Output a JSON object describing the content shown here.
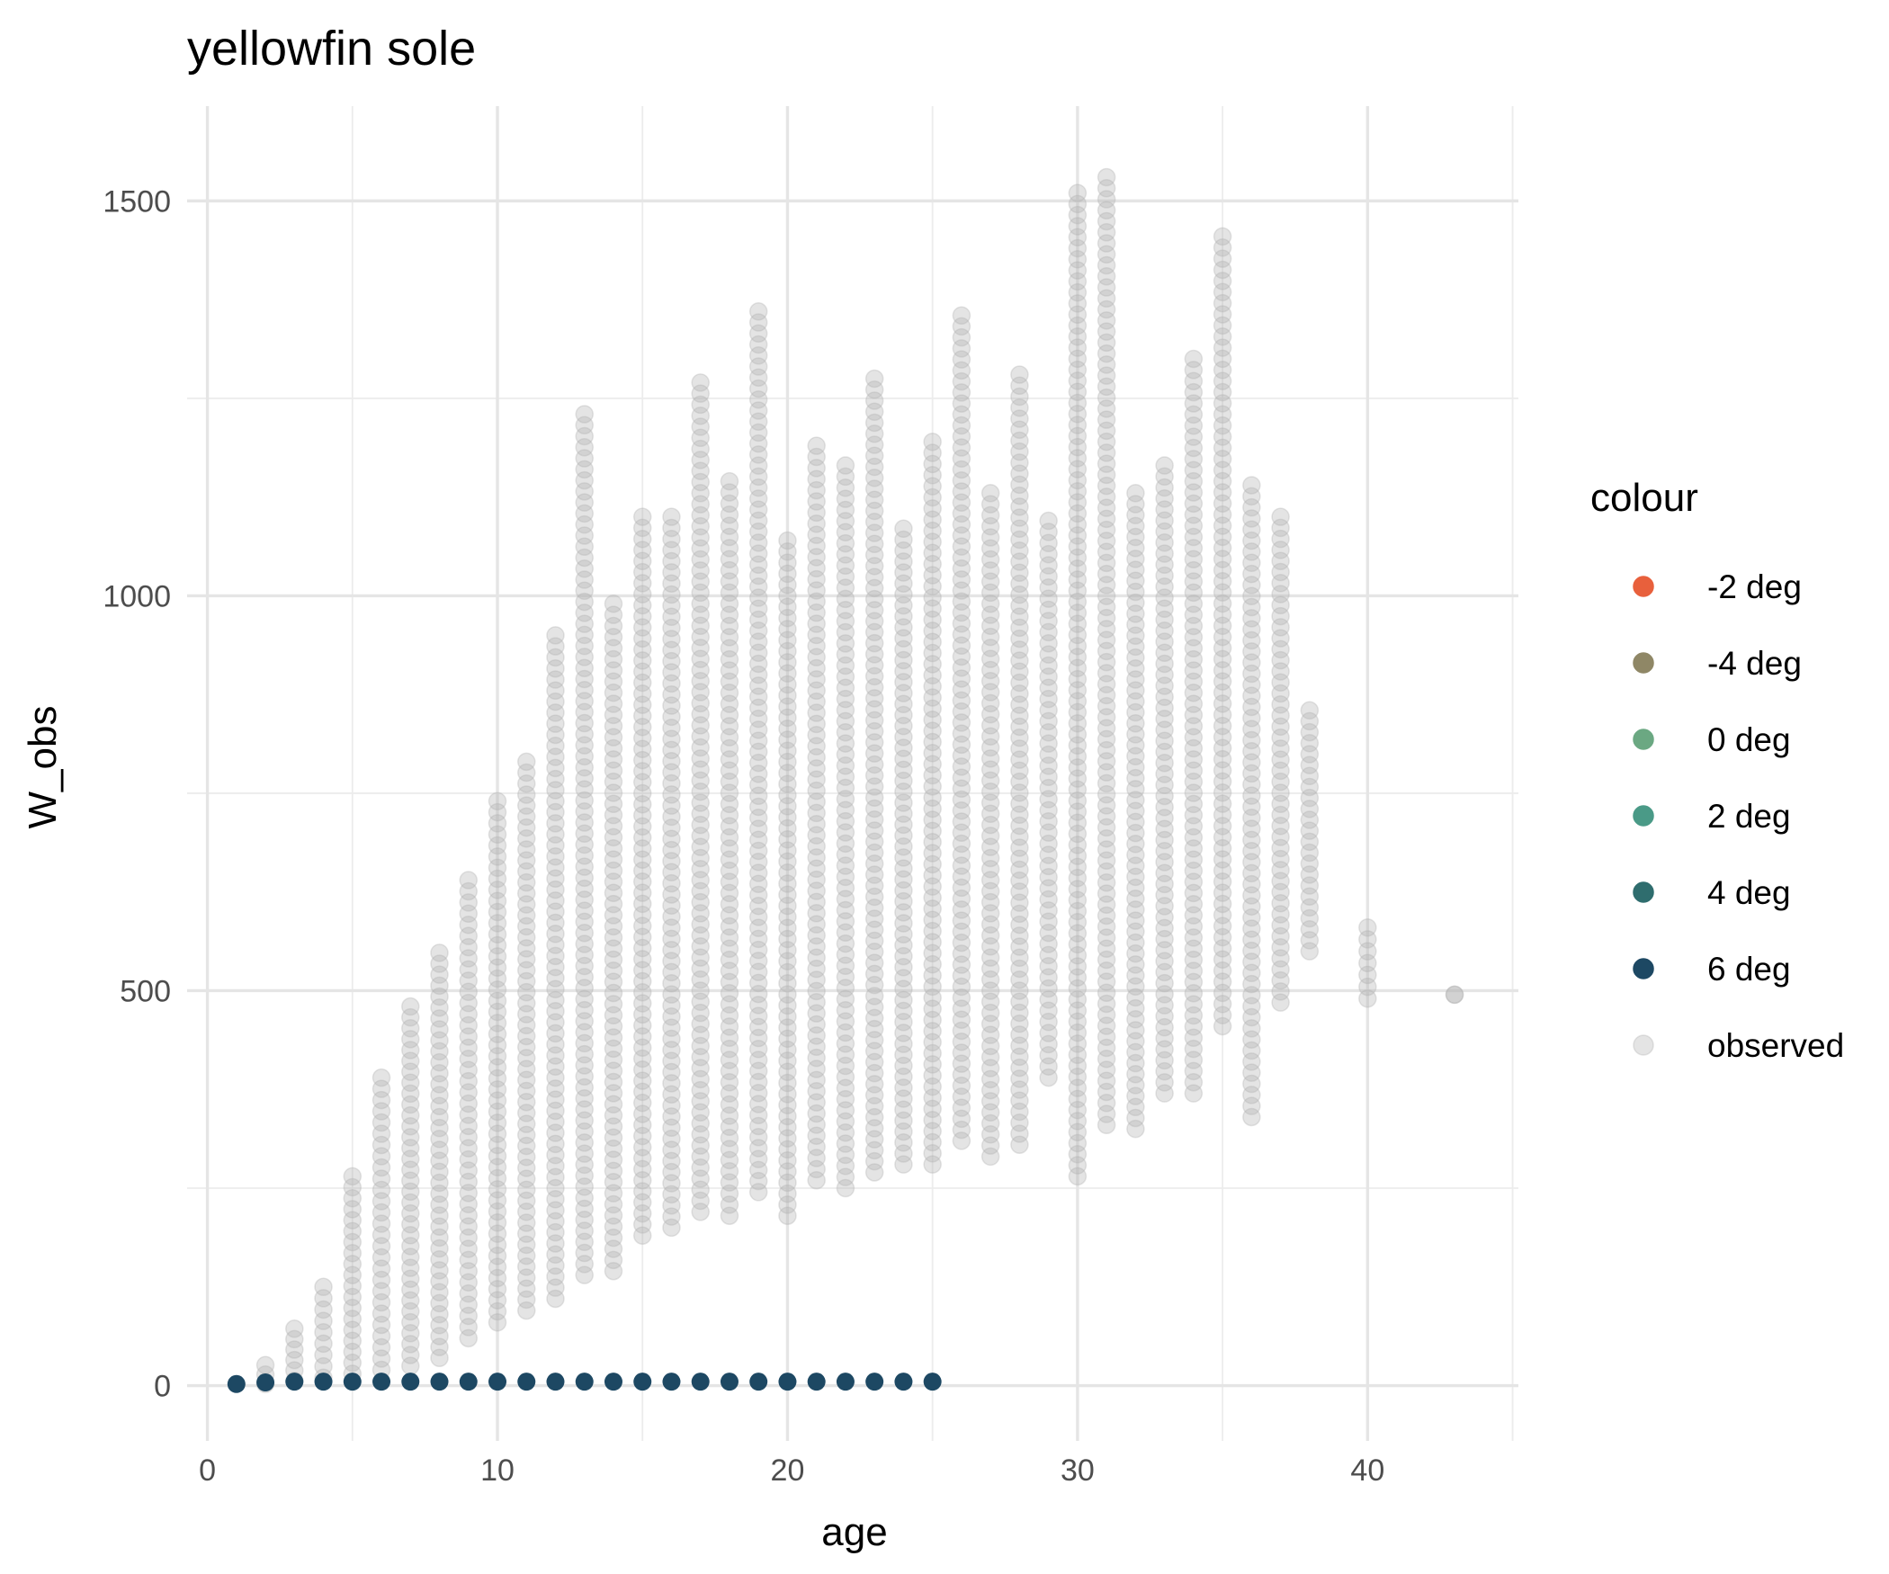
{
  "chart_data": {
    "type": "scatter",
    "title": "yellowfin sole",
    "xlabel": "age",
    "ylabel": "W_obs",
    "xlim": [
      -0.7,
      45.2
    ],
    "ylim": [
      -70,
      1620
    ],
    "x_ticks": [
      0,
      10,
      20,
      30,
      40
    ],
    "y_ticks": [
      0,
      500,
      1000,
      1500
    ],
    "grid": true,
    "legend": {
      "title": "colour",
      "position": "right",
      "entries": [
        {
          "label": "-2  deg",
          "color": "#E8603C"
        },
        {
          "label": "-4  deg",
          "color": "#8F8766"
        },
        {
          "label": "0  deg",
          "color": "#6BA882"
        },
        {
          "label": "2  deg",
          "color": "#4A9A87"
        },
        {
          "label": "4  deg",
          "color": "#2F6D6E"
        },
        {
          "label": "6  deg",
          "color": "#1D4863"
        },
        {
          "label": "observed",
          "color": "#B3B3B3"
        }
      ]
    },
    "series": [
      {
        "name": "observed",
        "color": "#B3B3B3",
        "opacity": 0.35,
        "age_ranges": [
          {
            "age": 2,
            "min": 2,
            "max": 26
          },
          {
            "age": 3,
            "min": 6,
            "max": 72
          },
          {
            "age": 4,
            "min": 10,
            "max": 125
          },
          {
            "age": 5,
            "min": 15,
            "max": 265
          },
          {
            "age": 6,
            "min": 20,
            "max": 390
          },
          {
            "age": 7,
            "min": 25,
            "max": 480
          },
          {
            "age": 8,
            "min": 35,
            "max": 548
          },
          {
            "age": 9,
            "min": 60,
            "max": 640
          },
          {
            "age": 10,
            "min": 80,
            "max": 740
          },
          {
            "age": 11,
            "min": 95,
            "max": 790
          },
          {
            "age": 12,
            "min": 110,
            "max": 950
          },
          {
            "age": 13,
            "min": 140,
            "max": 1230
          },
          {
            "age": 14,
            "min": 145,
            "max": 990
          },
          {
            "age": 15,
            "min": 190,
            "max": 1100
          },
          {
            "age": 16,
            "min": 200,
            "max": 1100
          },
          {
            "age": 17,
            "min": 220,
            "max": 1270
          },
          {
            "age": 18,
            "min": 215,
            "max": 1145
          },
          {
            "age": 19,
            "min": 245,
            "max": 1360
          },
          {
            "age": 20,
            "min": 215,
            "max": 1070
          },
          {
            "age": 21,
            "min": 260,
            "max": 1190
          },
          {
            "age": 22,
            "min": 250,
            "max": 1165
          },
          {
            "age": 23,
            "min": 270,
            "max": 1275
          },
          {
            "age": 24,
            "min": 280,
            "max": 1085
          },
          {
            "age": 25,
            "min": 280,
            "max": 1195
          },
          {
            "age": 26,
            "min": 310,
            "max": 1355
          },
          {
            "age": 27,
            "min": 290,
            "max": 1130
          },
          {
            "age": 28,
            "min": 305,
            "max": 1280
          },
          {
            "age": 29,
            "min": 390,
            "max": 1095
          },
          {
            "age": 30,
            "min": 265,
            "max": 1510
          },
          {
            "age": 31,
            "min": 330,
            "max": 1530
          },
          {
            "age": 32,
            "min": 325,
            "max": 1130
          },
          {
            "age": 33,
            "min": 370,
            "max": 1165
          },
          {
            "age": 34,
            "min": 370,
            "max": 1300
          },
          {
            "age": 35,
            "min": 455,
            "max": 1455
          },
          {
            "age": 36,
            "min": 340,
            "max": 1140
          },
          {
            "age": 37,
            "min": 485,
            "max": 1100
          },
          {
            "age": 38,
            "min": 550,
            "max": 855
          },
          {
            "age": 40,
            "min": 490,
            "max": 580
          },
          {
            "age": 43,
            "min": 495,
            "max": 495
          }
        ]
      },
      {
        "name": "6  deg",
        "color": "#1D4863",
        "x": [
          1,
          2,
          3,
          4,
          5,
          6,
          7,
          8,
          9,
          10,
          11,
          12,
          13,
          14,
          15,
          16,
          17,
          18,
          19,
          20,
          21,
          22,
          23,
          24,
          25
        ],
        "y": [
          2,
          4,
          5,
          5,
          5,
          5,
          5,
          5,
          5,
          5,
          5,
          5,
          5,
          5,
          5,
          5,
          5,
          5,
          5,
          5,
          5,
          5,
          5,
          5,
          5
        ]
      }
    ]
  }
}
